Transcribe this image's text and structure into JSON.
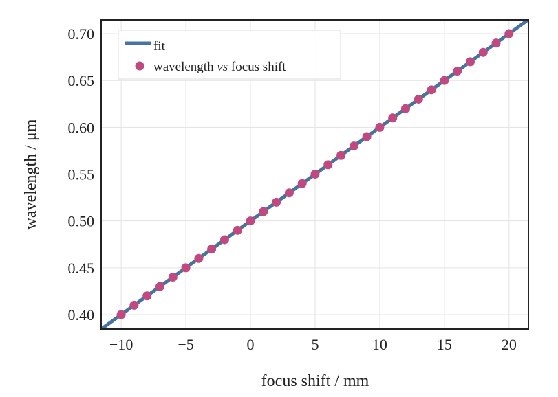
{
  "chart_data": {
    "type": "scatter",
    "xlabel": "focus shift / mm",
    "ylabel": "wavelength / μm",
    "xlim": [
      -11.55,
      21.5
    ],
    "ylim": [
      0.3846,
      0.7147
    ],
    "xticks": [
      -10,
      -5,
      0,
      5,
      10,
      15,
      20
    ],
    "xtick_labels": [
      "−10",
      "−5",
      "0",
      "5",
      "10",
      "15",
      "20"
    ],
    "yticks": [
      0.4,
      0.45,
      0.5,
      0.55,
      0.6,
      0.65,
      0.7
    ],
    "ytick_labels": [
      "0.40",
      "0.45",
      "0.50",
      "0.55",
      "0.60",
      "0.65",
      "0.70"
    ],
    "grid": true,
    "legend_position": "top-left",
    "legend": {
      "fit": "fit",
      "points_pre": "wavelength ",
      "points_italic": "vs",
      "points_post": " focus shift"
    },
    "series": [
      {
        "name": "fit",
        "kind": "line",
        "color": "#4673a2",
        "slope": 0.01,
        "intercept": 0.5
      },
      {
        "name": "wavelength vs focus shift",
        "kind": "scatter",
        "color": "#c04a80",
        "x": [
          -10,
          -9,
          -8,
          -7,
          -6,
          -5,
          -4,
          -3,
          -2,
          -1,
          0,
          1,
          2,
          3,
          4,
          5,
          6,
          7,
          8,
          9,
          10,
          11,
          12,
          13,
          14,
          15,
          16,
          17,
          18,
          19,
          20
        ],
        "y": [
          0.4,
          0.41,
          0.42,
          0.43,
          0.44,
          0.45,
          0.46,
          0.47,
          0.48,
          0.49,
          0.5,
          0.51,
          0.52,
          0.53,
          0.54,
          0.55,
          0.56,
          0.57,
          0.58,
          0.59,
          0.6,
          0.61,
          0.62,
          0.63,
          0.64,
          0.65,
          0.66,
          0.67,
          0.68,
          0.69,
          0.7
        ]
      }
    ]
  }
}
